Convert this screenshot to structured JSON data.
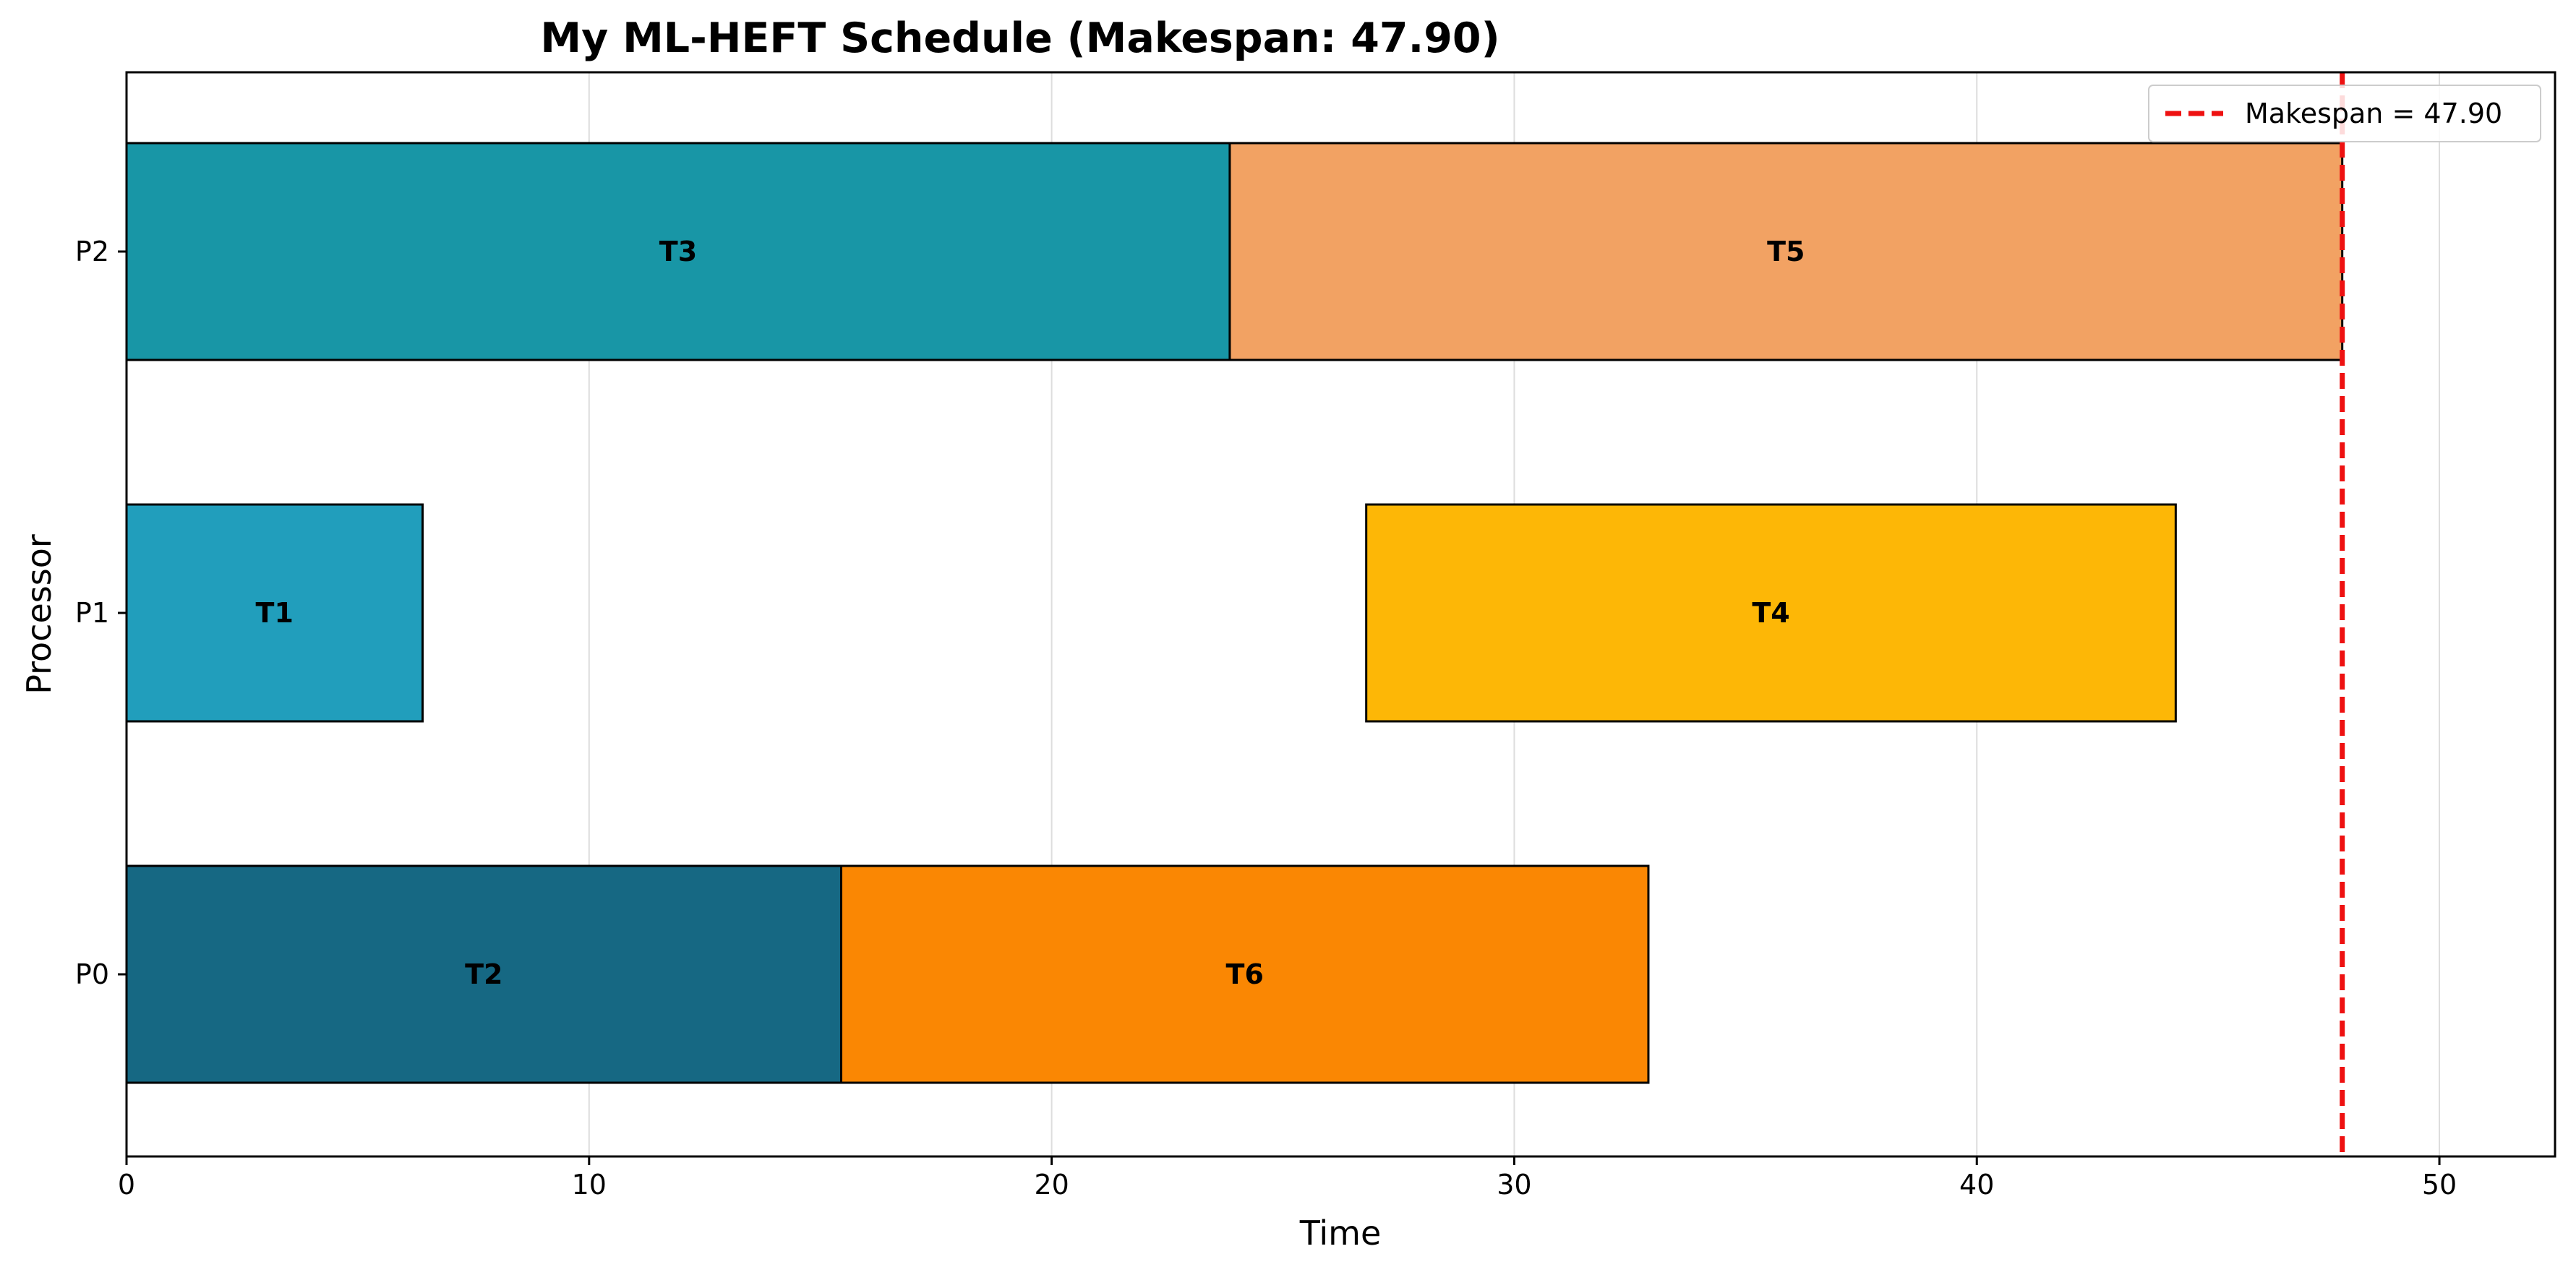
{
  "chart_data": {
    "type": "gantt",
    "title": "My ML-HEFT Schedule (Makespan: 47.90)",
    "xlabel": "Time",
    "ylabel": "Processor",
    "xlim": [
      0,
      52.5
    ],
    "xticks": [
      0,
      10,
      20,
      30,
      40,
      50
    ],
    "processors": [
      "P0",
      "P1",
      "P2"
    ],
    "grid": "vertical",
    "tasks": [
      {
        "name": "T3",
        "processor": "P2",
        "start": 0,
        "end": 23.85,
        "color": "#1896A6"
      },
      {
        "name": "T5",
        "processor": "P2",
        "start": 23.85,
        "end": 47.9,
        "color": "#F2A263"
      },
      {
        "name": "T1",
        "processor": "P1",
        "start": 0,
        "end": 6.4,
        "color": "#219EBC"
      },
      {
        "name": "T4",
        "processor": "P1",
        "start": 26.8,
        "end": 44.3,
        "color": "#FDB706"
      },
      {
        "name": "T2",
        "processor": "P0",
        "start": 0,
        "end": 15.45,
        "color": "#166883"
      },
      {
        "name": "T6",
        "processor": "P0",
        "start": 15.45,
        "end": 32.9,
        "color": "#FA8703"
      }
    ],
    "makespan": {
      "value": 47.9,
      "label": "Makespan = 47.90",
      "color": "#EE1111"
    },
    "legend": {
      "position": "top-right"
    }
  }
}
